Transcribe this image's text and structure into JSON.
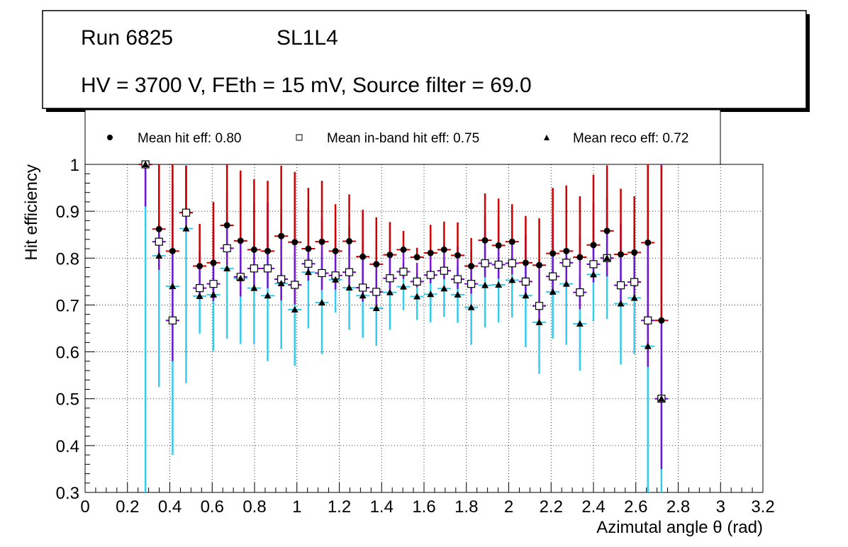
{
  "chart_data": {
    "type": "scatter",
    "header": {
      "run": "Run 6825",
      "layer": "SL1L4",
      "conditions": "HV = 3700 V, FEth = 15 mV, Source filter = 69.0"
    },
    "xlabel": "Azimutal angle θ (rad)",
    "ylabel": "Hit efficiency",
    "xlim": [
      0,
      3.2
    ],
    "ylim": [
      0.3,
      1.0
    ],
    "grid": true,
    "xticks": [
      "0",
      "0.2",
      "0.4",
      "0.6",
      "0.8",
      "1",
      "1.2",
      "1.4",
      "1.6",
      "1.8",
      "2",
      "2.2",
      "2.4",
      "2.6",
      "2.8",
      "3",
      "3.2"
    ],
    "yticks": [
      "0.3",
      "0.4",
      "0.5",
      "0.6",
      "0.7",
      "0.8",
      "0.9",
      "1"
    ],
    "legend": [
      "Mean hit  eff: 0.80",
      "Mean in-band hit eff: 0.75",
      "Mean reco eff: 0.72"
    ],
    "legend_placement": "top",
    "colors": {
      "hit_err": "#cc0000",
      "inband_err": "#7a00cc",
      "reco_err": "#33ccee"
    },
    "x": [
      0.285,
      0.349,
      0.413,
      0.477,
      0.541,
      0.606,
      0.67,
      0.734,
      0.798,
      0.862,
      0.926,
      0.99,
      1.054,
      1.118,
      1.182,
      1.247,
      1.311,
      1.375,
      1.439,
      1.503,
      1.567,
      1.631,
      1.695,
      1.759,
      1.823,
      1.888,
      1.952,
      2.016,
      2.08,
      2.144,
      2.208,
      2.272,
      2.336,
      2.4,
      2.464,
      2.529,
      2.593,
      2.657,
      2.721
    ],
    "series": [
      {
        "name": "hit",
        "marker": "circle",
        "values": [
          1.0,
          0.862,
          0.815,
          0.897,
          0.783,
          0.79,
          0.87,
          0.837,
          0.818,
          0.815,
          0.847,
          0.834,
          0.82,
          0.835,
          0.815,
          0.836,
          0.803,
          0.787,
          0.807,
          0.818,
          0.802,
          0.811,
          0.818,
          0.806,
          0.783,
          0.838,
          0.827,
          0.835,
          0.79,
          0.785,
          0.81,
          0.815,
          0.802,
          0.828,
          0.858,
          0.808,
          0.812,
          0.833,
          0.667
        ],
        "err_up": [
          0,
          0.14,
          0.19,
          0.1,
          0.09,
          0.13,
          0.13,
          0.15,
          0.15,
          0.15,
          0.15,
          0.15,
          0.13,
          0.13,
          0.1,
          0.1,
          0.1,
          0.1,
          0.07,
          0.04,
          0.02,
          0.06,
          0.06,
          0.07,
          0.06,
          0.1,
          0.1,
          0.08,
          0.1,
          0.1,
          0.14,
          0.14,
          0.13,
          0.15,
          0.14,
          0.14,
          0.12,
          0.17,
          0.33
        ]
      },
      {
        "name": "inband",
        "marker": "square",
        "values": [
          1.0,
          0.835,
          0.667,
          0.897,
          0.736,
          0.745,
          0.821,
          0.76,
          0.778,
          0.778,
          0.755,
          0.743,
          0.788,
          0.768,
          0.763,
          0.77,
          0.737,
          0.728,
          0.757,
          0.771,
          0.75,
          0.764,
          0.773,
          0.755,
          0.745,
          0.789,
          0.786,
          0.789,
          0.75,
          0.698,
          0.761,
          0.79,
          0.727,
          0.787,
          0.8,
          0.742,
          0.749,
          0.667,
          0.5
        ],
        "err": [
          0.3,
          0.2,
          0.29,
          0.1,
          0.08,
          0.12,
          0.12,
          0.14,
          0.14,
          0.14,
          0.15,
          0.14,
          0.12,
          0.12,
          0.1,
          0.1,
          0.1,
          0.1,
          0.08,
          0.05,
          0.04,
          0.06,
          0.06,
          0.07,
          0.07,
          0.1,
          0.1,
          0.08,
          0.1,
          0.1,
          0.12,
          0.13,
          0.12,
          0.13,
          0.13,
          0.13,
          0.12,
          0.33,
          0.5
        ]
      },
      {
        "name": "reco",
        "marker": "triangle",
        "values": [
          1.0,
          0.805,
          0.74,
          0.863,
          0.719,
          0.722,
          0.778,
          0.757,
          0.736,
          0.72,
          0.746,
          0.69,
          0.77,
          0.705,
          0.754,
          0.737,
          0.72,
          0.693,
          0.727,
          0.739,
          0.718,
          0.723,
          0.735,
          0.722,
          0.695,
          0.742,
          0.743,
          0.753,
          0.72,
          0.663,
          0.728,
          0.745,
          0.66,
          0.765,
          0.8,
          0.703,
          0.715,
          0.612,
          0.5
        ],
        "err": [
          0.7,
          0.28,
          0.36,
          0.33,
          0.08,
          0.12,
          0.15,
          0.14,
          0.12,
          0.14,
          0.14,
          0.12,
          0.12,
          0.11,
          0.07,
          0.09,
          0.09,
          0.08,
          0.08,
          0.05,
          0.05,
          0.06,
          0.06,
          0.06,
          0.08,
          0.09,
          0.08,
          0.08,
          0.11,
          0.11,
          0.1,
          0.13,
          0.1,
          0.1,
          0.13,
          0.13,
          0.12,
          0.4,
          0.5
        ]
      }
    ]
  }
}
